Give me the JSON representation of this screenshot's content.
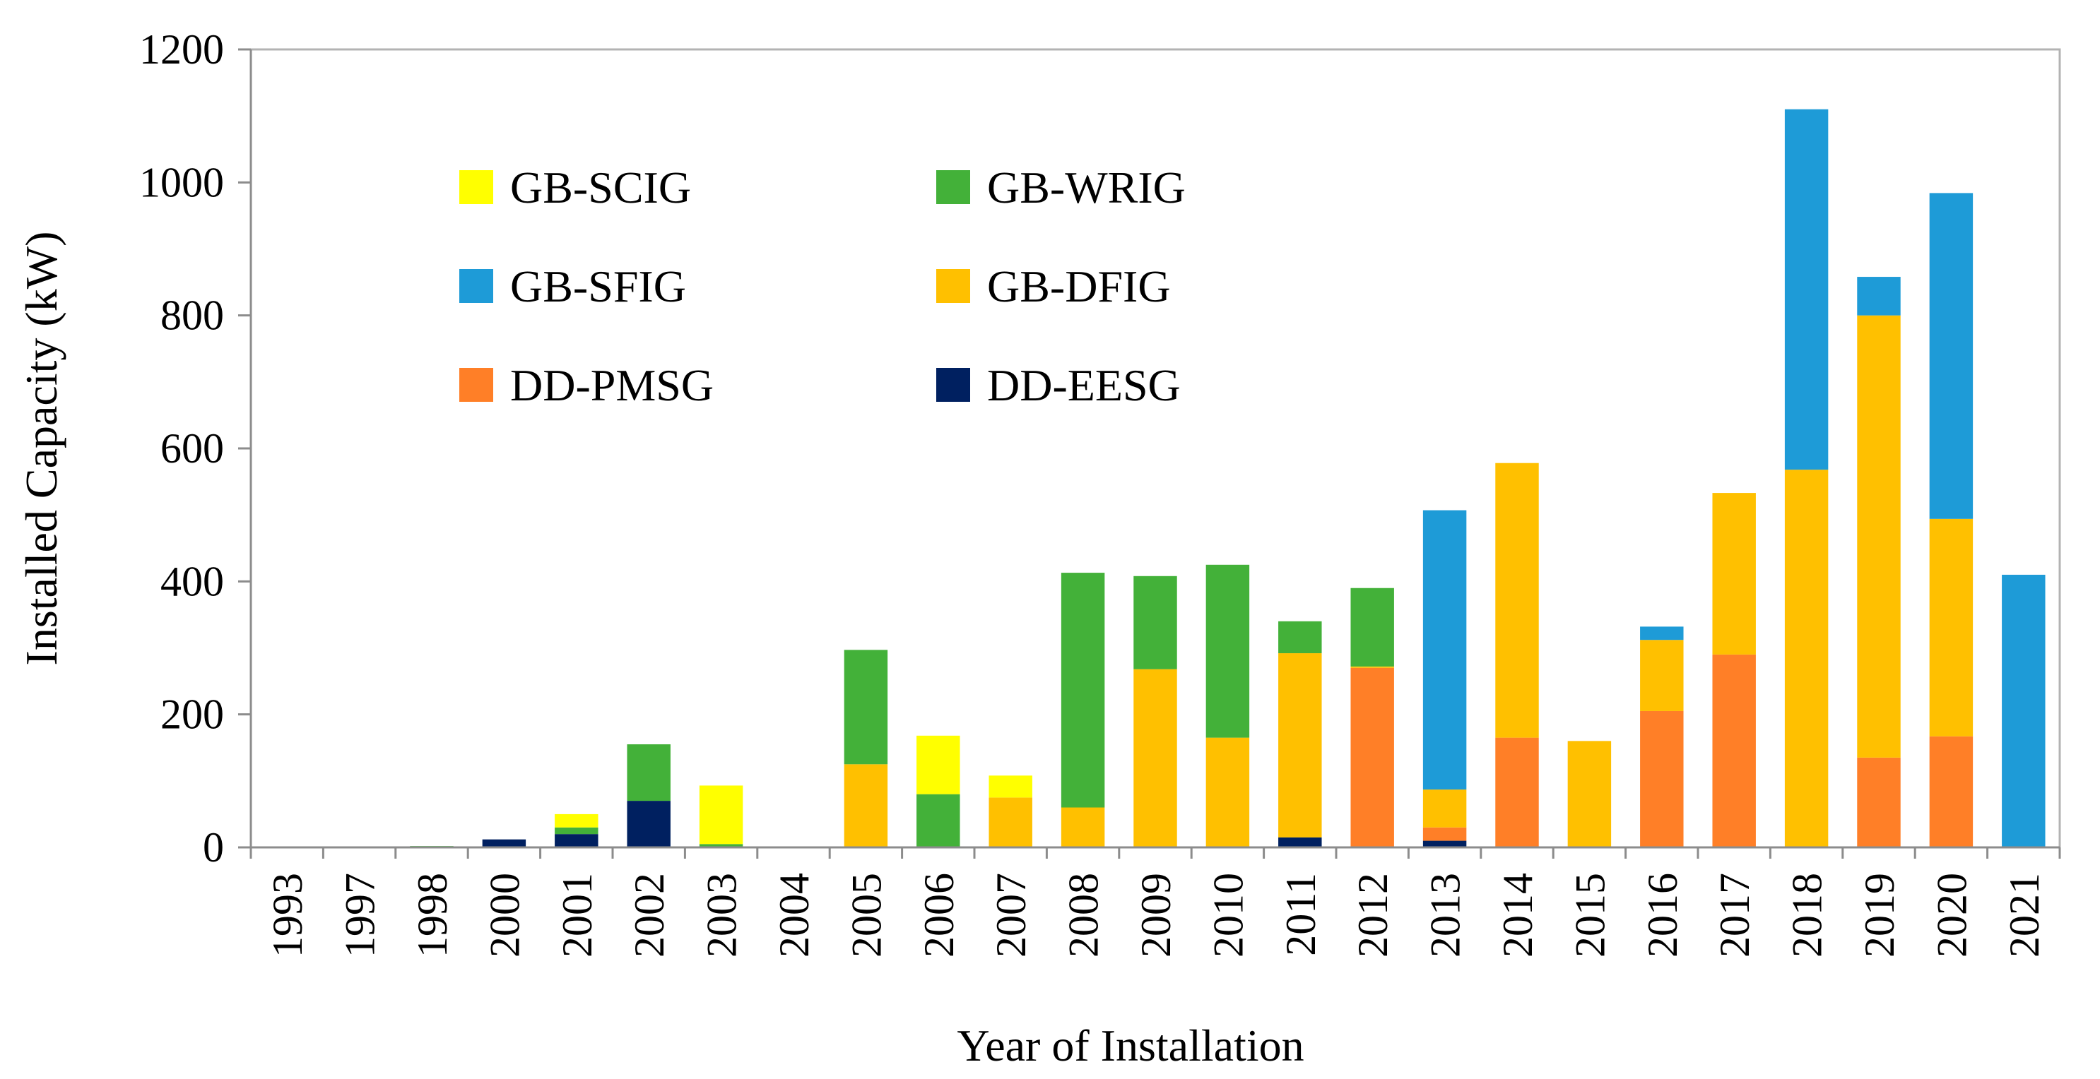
{
  "chart_data": {
    "type": "bar",
    "stacked": true,
    "title": "",
    "xlabel": "Year of Installation",
    "ylabel": "Installed Capacity (kW)",
    "ylim": [
      0,
      1200
    ],
    "yticks": [
      0,
      200,
      400,
      600,
      800,
      1000,
      1200
    ],
    "grid": false,
    "legend_position": "top-left, inside plot, two columns",
    "categories": [
      "1993",
      "1997",
      "1998",
      "2000",
      "2001",
      "2002",
      "2003",
      "2004",
      "2005",
      "2006",
      "2007",
      "2008",
      "2009",
      "2010",
      "2011",
      "2012",
      "2013",
      "2014",
      "2015",
      "2016",
      "2017",
      "2018",
      "2019",
      "2020",
      "2021"
    ],
    "series": [
      {
        "name": "DD-EESG",
        "color": "#002060",
        "values": [
          0,
          0,
          0,
          12,
          20,
          70,
          0,
          0,
          0,
          0,
          0,
          0,
          0,
          0,
          15,
          0,
          10,
          0,
          0,
          0,
          0,
          0,
          0,
          0,
          0
        ]
      },
      {
        "name": "DD-PMSG",
        "color": "#FF7F27",
        "values": [
          0,
          0,
          0,
          0,
          0,
          0,
          0,
          0,
          0,
          0,
          0,
          0,
          0,
          0,
          0,
          270,
          20,
          165,
          0,
          205,
          290,
          0,
          135,
          167,
          0
        ]
      },
      {
        "name": "GB-DFIG",
        "color": "#FFC000",
        "values": [
          0,
          0,
          0,
          0,
          0,
          0,
          0,
          0,
          125,
          0,
          75,
          60,
          268,
          165,
          277,
          2,
          57,
          413,
          160,
          107,
          243,
          568,
          665,
          327,
          0
        ]
      },
      {
        "name": "GB-SFIG",
        "color": "#1E9BD7",
        "values": [
          0,
          0,
          0,
          0,
          0,
          0,
          0,
          0,
          0,
          0,
          0,
          0,
          0,
          0,
          0,
          0,
          420,
          0,
          0,
          20,
          0,
          542,
          58,
          490,
          410
        ]
      },
      {
        "name": "GB-WRIG",
        "color": "#43B139",
        "values": [
          0,
          0,
          2,
          0,
          10,
          85,
          5,
          0,
          172,
          80,
          0,
          353,
          140,
          260,
          48,
          118,
          0,
          0,
          0,
          0,
          0,
          0,
          0,
          0,
          0
        ]
      },
      {
        "name": "GB-SCIG",
        "color": "#FFFF00",
        "values": [
          0,
          0,
          0,
          0,
          20,
          0,
          88,
          0,
          0,
          88,
          33,
          0,
          0,
          0,
          0,
          0,
          0,
          0,
          0,
          0,
          0,
          0,
          0,
          0,
          0
        ]
      }
    ],
    "legend": [
      {
        "name": "GB-SCIG",
        "color": "#FFFF00"
      },
      {
        "name": "GB-WRIG",
        "color": "#43B139"
      },
      {
        "name": "GB-SFIG",
        "color": "#1E9BD7"
      },
      {
        "name": "GB-DFIG",
        "color": "#FFC000"
      },
      {
        "name": "DD-PMSG",
        "color": "#FF7F27"
      },
      {
        "name": "DD-EESG",
        "color": "#002060"
      }
    ]
  }
}
